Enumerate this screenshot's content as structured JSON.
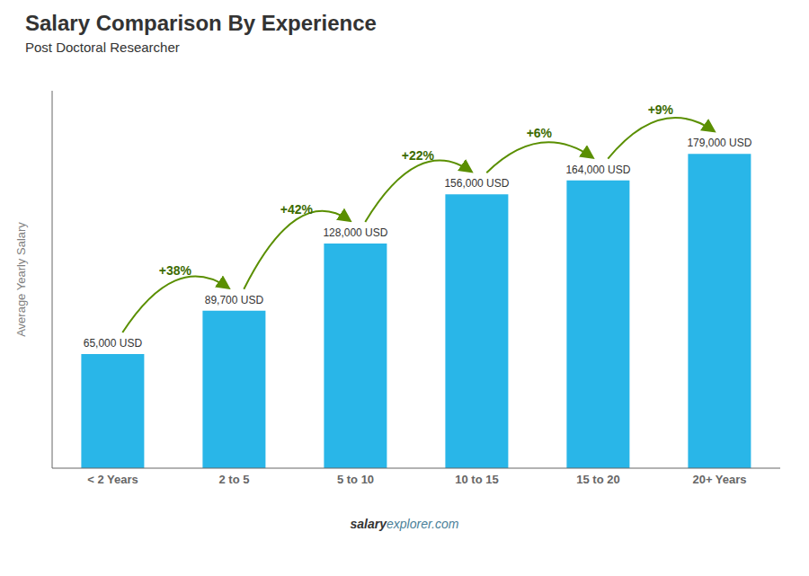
{
  "chart_data": {
    "type": "bar",
    "title": "Salary Comparison By Experience",
    "subtitle": "Post Doctoral Researcher",
    "y_label": "Average Yearly Salary",
    "categories": [
      "< 2 Years",
      "2 to 5",
      "5 to 10",
      "10 to 15",
      "15 to 20",
      "20+ Years"
    ],
    "values": [
      65000,
      89700,
      128000,
      156000,
      164000,
      179000
    ],
    "value_labels": [
      "65,000 USD",
      "89,700 USD",
      "128,000 USD",
      "156,000 USD",
      "164,000 USD",
      "179,000 USD"
    ],
    "data_labels": true,
    "color": "#29b6e8",
    "ylim": [
      0,
      215000
    ],
    "yticks": [],
    "tick_labels": "x",
    "grid": false,
    "annotations": [
      {
        "text": "+38%",
        "from": "< 2 Years",
        "to": "2 to 5"
      },
      {
        "text": "+42%",
        "from": "2 to 5",
        "to": "5 to 10"
      },
      {
        "text": "+22%",
        "from": "5 to 10",
        "to": "10 to 15"
      },
      {
        "text": "+6%",
        "from": "10 to 15",
        "to": "15 to 20"
      },
      {
        "text": "+9%",
        "from": "15 to 20",
        "to": "20+ Years"
      }
    ],
    "footer": [
      "salary",
      "explorer.com"
    ]
  }
}
